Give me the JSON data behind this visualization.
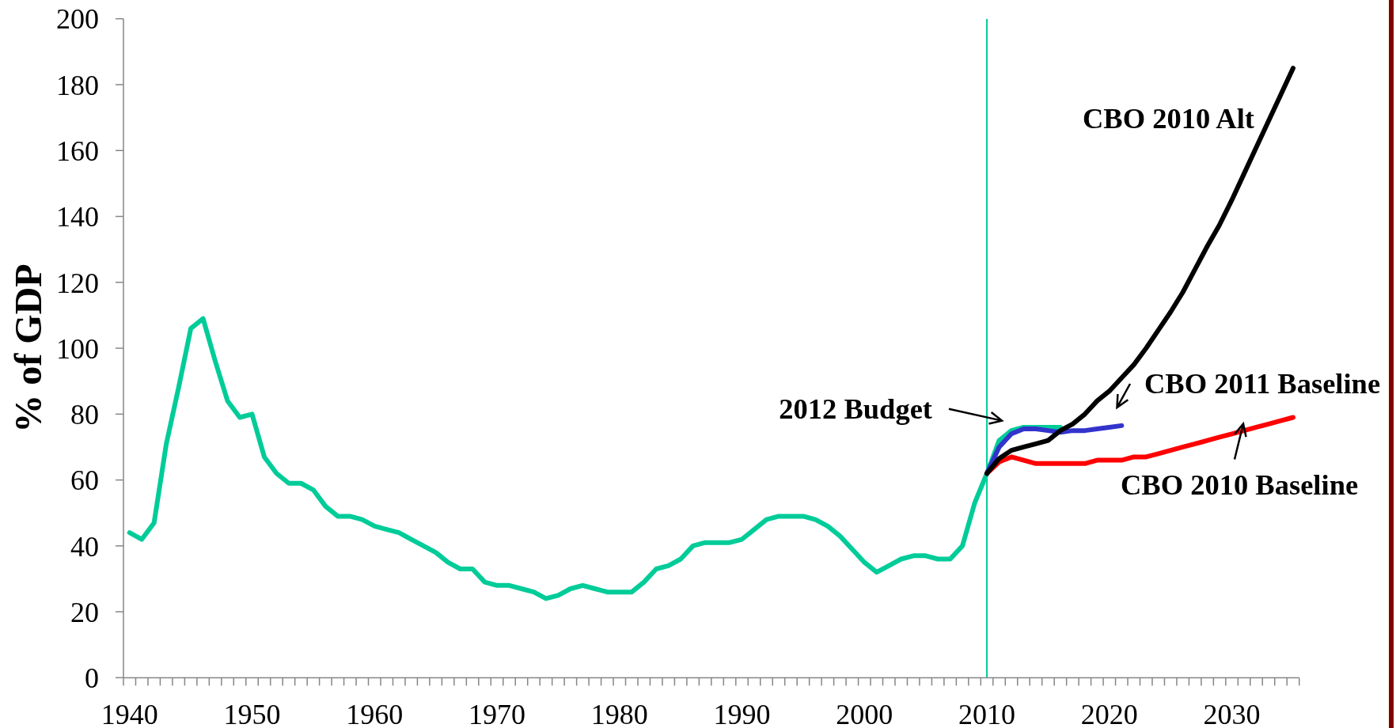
{
  "chart_data": {
    "type": "line",
    "ylabel": "% of GDP",
    "categories": [
      "1940",
      null,
      null,
      null,
      null,
      null,
      null,
      null,
      null,
      null,
      "1950",
      null,
      null,
      null,
      null,
      null,
      null,
      null,
      null,
      null,
      "1960",
      null,
      null,
      null,
      null,
      null,
      null,
      null,
      null,
      null,
      "1970",
      null,
      null,
      null,
      null,
      null,
      null,
      null,
      null,
      null,
      "1980",
      null,
      null,
      null,
      null,
      null,
      null,
      null,
      null,
      null,
      "1990",
      null,
      null,
      null,
      null,
      null,
      null,
      null,
      null,
      null,
      "2000",
      null,
      null,
      null,
      null,
      null,
      null,
      null,
      null,
      null,
      "2010",
      null,
      null,
      null,
      null,
      null,
      null,
      null,
      null,
      null,
      "2020",
      null,
      null,
      null,
      null,
      null,
      null,
      null,
      null,
      null,
      "2030",
      null,
      null,
      null,
      null,
      null
    ],
    "ylim": [
      0,
      200
    ],
    "yticks": [
      0,
      20,
      40,
      60,
      80,
      100,
      120,
      140,
      160,
      180,
      200
    ],
    "ref_lines": [
      {
        "axis": "x",
        "value": "2010",
        "color": "#00cc99"
      }
    ],
    "annotations": [
      "2012 Budget",
      "CBO 2011 Baseline"
    ],
    "series": [
      {
        "color": "#00cc99",
        "values": [
          44,
          42,
          47,
          71,
          88,
          106,
          109,
          96,
          84,
          79,
          80,
          67,
          62,
          59,
          59,
          57,
          52,
          49,
          49,
          48,
          46,
          45,
          44,
          42,
          40,
          38,
          35,
          33,
          33,
          29,
          28,
          28,
          27,
          26,
          24,
          25,
          27,
          28,
          27,
          26,
          26,
          26,
          29,
          33,
          34,
          36,
          40,
          41,
          41,
          41,
          42,
          45,
          48,
          49,
          49,
          49,
          48,
          46,
          43,
          39,
          35,
          32,
          34,
          36,
          37,
          37,
          36,
          36,
          40,
          53,
          62,
          72,
          75,
          76,
          76,
          76,
          76,
          null,
          null,
          null,
          null,
          null,
          null,
          null,
          null,
          null,
          null,
          null,
          null,
          null,
          null,
          null,
          null,
          null,
          null,
          null
        ]
      },
      {
        "color": "#3333cc",
        "values": [
          null,
          null,
          null,
          null,
          null,
          null,
          null,
          null,
          null,
          null,
          null,
          null,
          null,
          null,
          null,
          null,
          null,
          null,
          null,
          null,
          null,
          null,
          null,
          null,
          null,
          null,
          null,
          null,
          null,
          null,
          null,
          null,
          null,
          null,
          null,
          null,
          null,
          null,
          null,
          null,
          null,
          null,
          null,
          null,
          null,
          null,
          null,
          null,
          null,
          null,
          null,
          null,
          null,
          null,
          null,
          null,
          null,
          null,
          null,
          null,
          null,
          null,
          null,
          null,
          null,
          null,
          null,
          null,
          null,
          null,
          62,
          70,
          74,
          75.5,
          75.5,
          75,
          74.5,
          75,
          75,
          75.5,
          76,
          76.5,
          null,
          null,
          null,
          null,
          null,
          null,
          null,
          null,
          null,
          null,
          null,
          null,
          null,
          null
        ]
      },
      {
        "name": "CBO 2010 Baseline",
        "color": "#ff0000",
        "values": [
          null,
          null,
          null,
          null,
          null,
          null,
          null,
          null,
          null,
          null,
          null,
          null,
          null,
          null,
          null,
          null,
          null,
          null,
          null,
          null,
          null,
          null,
          null,
          null,
          null,
          null,
          null,
          null,
          null,
          null,
          null,
          null,
          null,
          null,
          null,
          null,
          null,
          null,
          null,
          null,
          null,
          null,
          null,
          null,
          null,
          null,
          null,
          null,
          null,
          null,
          null,
          null,
          null,
          null,
          null,
          null,
          null,
          null,
          null,
          null,
          null,
          null,
          null,
          null,
          null,
          null,
          null,
          null,
          null,
          null,
          62,
          65.5,
          67,
          66,
          65,
          65,
          65,
          65,
          65,
          66,
          66,
          66,
          67,
          67,
          68,
          69,
          70,
          71,
          72,
          73,
          74,
          75,
          76,
          77,
          78,
          79
        ]
      },
      {
        "name": "CBO 2010 Alt",
        "color": "#000000",
        "values": [
          null,
          null,
          null,
          null,
          null,
          null,
          null,
          null,
          null,
          null,
          null,
          null,
          null,
          null,
          null,
          null,
          null,
          null,
          null,
          null,
          null,
          null,
          null,
          null,
          null,
          null,
          null,
          null,
          null,
          null,
          null,
          null,
          null,
          null,
          null,
          null,
          null,
          null,
          null,
          null,
          null,
          null,
          null,
          null,
          null,
          null,
          null,
          null,
          null,
          null,
          null,
          null,
          null,
          null,
          null,
          null,
          null,
          null,
          null,
          null,
          null,
          null,
          null,
          null,
          null,
          null,
          null,
          null,
          null,
          null,
          62,
          66.5,
          69,
          70,
          71,
          72,
          75,
          77,
          80,
          84,
          87,
          91,
          95,
          100,
          105.5,
          111,
          117,
          124,
          131,
          137.5,
          145,
          153,
          161,
          169,
          177,
          185
        ]
      }
    ]
  }
}
